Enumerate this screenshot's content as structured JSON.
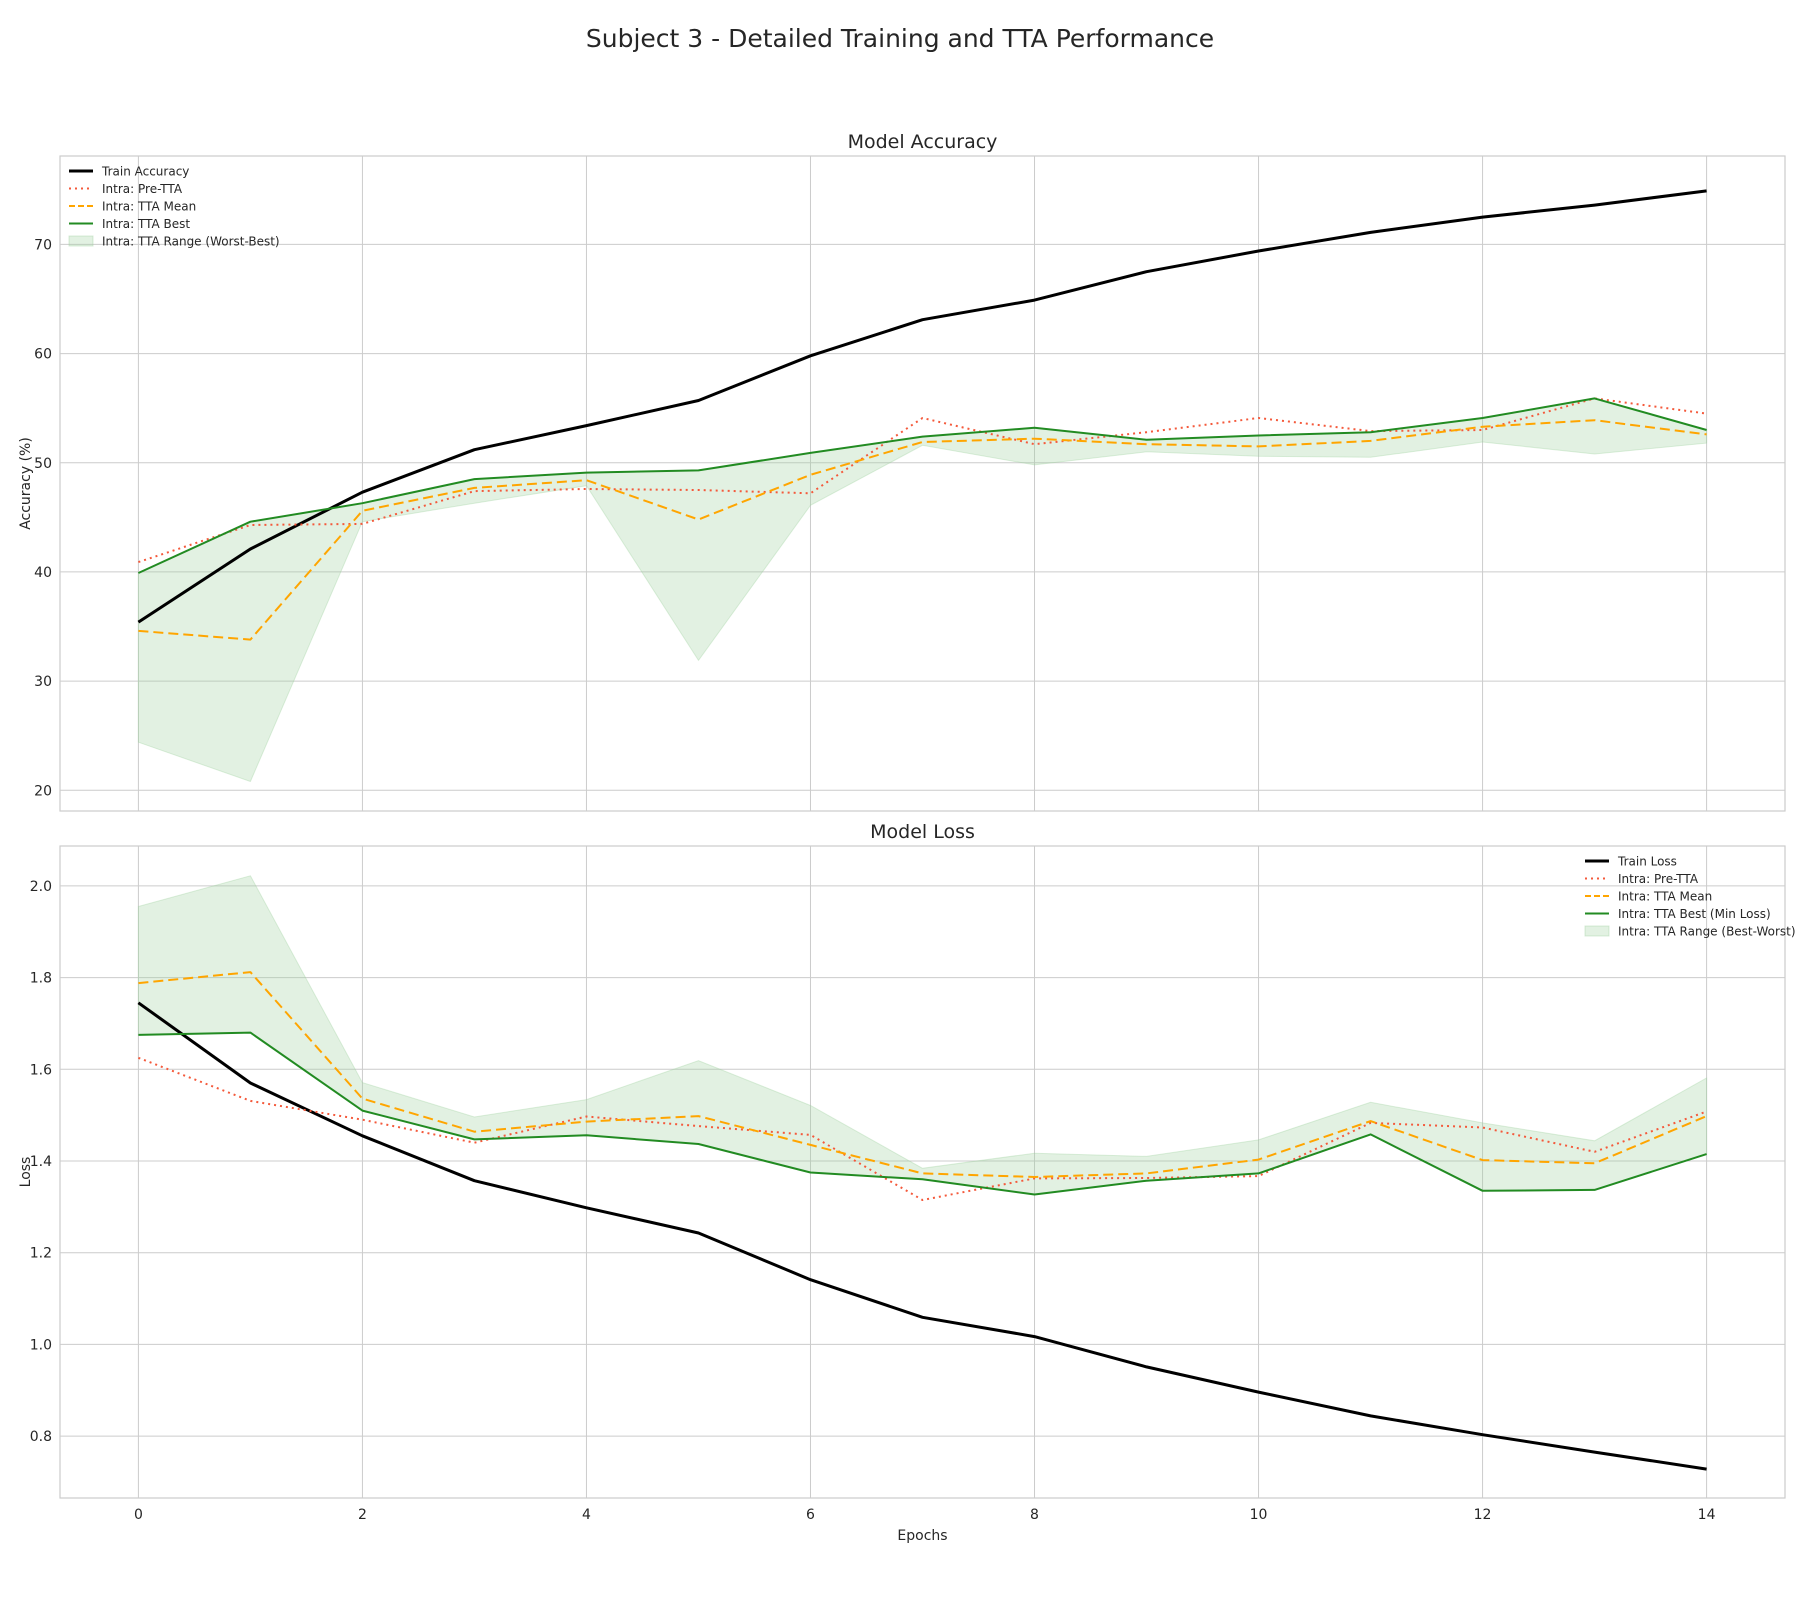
{
  "figure": {
    "title": "Subject 3 - Detailed Training and TTA Performance"
  },
  "colors": {
    "train": "#000000",
    "pre_tta": "#f4593b",
    "tta_mean": "#ffa500",
    "tta_best": "#228b22",
    "tta_range": "#9fd09f",
    "grid": "#cccccc",
    "frame": "#cccccc"
  },
  "chart_data": [
    {
      "type": "line",
      "title": "Model Accuracy",
      "xlabel": "",
      "ylabel": "Accuracy (%)",
      "x": [
        0,
        1,
        2,
        3,
        4,
        5,
        6,
        7,
        8,
        9,
        10,
        11,
        12,
        13,
        14
      ],
      "xlim": [
        -0.7,
        14.7
      ],
      "ylim": [
        18.1,
        78.1
      ],
      "xticks": [
        0,
        2,
        4,
        6,
        8,
        10,
        12,
        14
      ],
      "yticks": [
        20,
        30,
        40,
        50,
        60,
        70
      ],
      "grid": true,
      "legend_position": "upper-left",
      "series": [
        {
          "name": "Train Accuracy",
          "style": "solid-thick",
          "color_key": "train",
          "values": [
            35.4,
            42.1,
            47.3,
            51.2,
            53.4,
            55.7,
            59.8,
            63.1,
            64.9,
            67.5,
            69.4,
            71.1,
            72.5,
            73.6,
            74.9
          ]
        },
        {
          "name": "Intra: Pre-TTA",
          "style": "dotted",
          "color_key": "pre_tta",
          "values": [
            40.9,
            44.3,
            44.4,
            47.4,
            47.6,
            47.5,
            47.2,
            54.1,
            51.7,
            52.8,
            54.1,
            52.9,
            53.0,
            55.9,
            54.5
          ]
        },
        {
          "name": "Intra: TTA Mean",
          "style": "dashed",
          "color_key": "tta_mean",
          "values": [
            34.6,
            33.8,
            45.6,
            47.7,
            48.4,
            44.8,
            48.9,
            51.9,
            52.2,
            51.7,
            51.5,
            52.0,
            53.3,
            53.9,
            52.6
          ]
        },
        {
          "name": "Intra: TTA Best",
          "style": "solid",
          "color_key": "tta_best",
          "values": [
            39.9,
            44.6,
            46.3,
            48.5,
            49.1,
            49.3,
            50.9,
            52.4,
            53.2,
            52.1,
            52.5,
            52.8,
            54.1,
            55.9,
            53.0
          ]
        }
      ],
      "band": {
        "name": "Intra: TTA Range (Worst-Best)",
        "color_key": "tta_range",
        "lower": [
          24.4,
          20.8,
          44.6,
          46.3,
          47.9,
          31.9,
          46.1,
          51.6,
          49.8,
          51.0,
          50.6,
          50.5,
          51.9,
          50.8,
          51.8
        ],
        "upper": [
          39.9,
          44.6,
          46.3,
          48.5,
          49.1,
          49.3,
          50.9,
          52.4,
          53.2,
          52.1,
          52.5,
          52.8,
          54.1,
          55.9,
          53.0
        ]
      }
    },
    {
      "type": "line",
      "title": "Model Loss",
      "xlabel": "Epochs",
      "ylabel": "Loss",
      "x": [
        0,
        1,
        2,
        3,
        4,
        5,
        6,
        7,
        8,
        9,
        10,
        11,
        12,
        13,
        14
      ],
      "xlim": [
        -0.7,
        14.7
      ],
      "ylim": [
        0.665,
        2.087
      ],
      "xticks": [
        0,
        2,
        4,
        6,
        8,
        10,
        12,
        14
      ],
      "yticks": [
        0.8,
        1.0,
        1.2,
        1.4,
        1.6,
        1.8,
        2.0
      ],
      "grid": true,
      "legend_position": "upper-right",
      "series": [
        {
          "name": "Train Loss",
          "style": "solid-thick",
          "color_key": "train",
          "values": [
            1.745,
            1.57,
            1.455,
            1.357,
            1.298,
            1.243,
            1.141,
            1.059,
            1.017,
            0.951,
            0.896,
            0.844,
            0.803,
            0.765,
            0.728
          ]
        },
        {
          "name": "Intra: Pre-TTA",
          "style": "dotted",
          "color_key": "pre_tta",
          "values": [
            1.625,
            1.531,
            1.49,
            1.44,
            1.497,
            1.476,
            1.457,
            1.315,
            1.362,
            1.363,
            1.367,
            1.483,
            1.473,
            1.42,
            1.508
          ]
        },
        {
          "name": "Intra: TTA Mean",
          "style": "dashed",
          "color_key": "tta_mean",
          "values": [
            1.788,
            1.812,
            1.536,
            1.464,
            1.486,
            1.498,
            1.435,
            1.373,
            1.365,
            1.373,
            1.403,
            1.487,
            1.402,
            1.395,
            1.498
          ]
        },
        {
          "name": "Intra: TTA Best (Min Loss)",
          "style": "solid",
          "color_key": "tta_best",
          "values": [
            1.675,
            1.68,
            1.51,
            1.447,
            1.456,
            1.437,
            1.375,
            1.36,
            1.327,
            1.357,
            1.373,
            1.458,
            1.335,
            1.337,
            1.415
          ]
        }
      ],
      "band": {
        "name": "Intra: TTA Range (Best-Worst)",
        "color_key": "tta_range",
        "lower": [
          1.675,
          1.68,
          1.51,
          1.447,
          1.456,
          1.437,
          1.375,
          1.36,
          1.327,
          1.357,
          1.373,
          1.458,
          1.335,
          1.337,
          1.415
        ],
        "upper": [
          1.955,
          2.022,
          1.571,
          1.496,
          1.534,
          1.619,
          1.521,
          1.384,
          1.417,
          1.41,
          1.446,
          1.528,
          1.483,
          1.444,
          1.581
        ]
      }
    }
  ]
}
